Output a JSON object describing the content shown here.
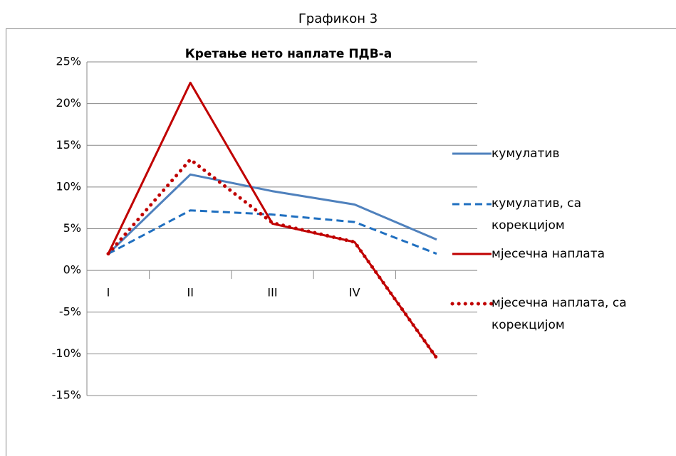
{
  "caption": "Графикон 3",
  "chart_data": {
    "type": "line",
    "title": "Кретање нето наплате ПДВ-а",
    "categories": [
      "I",
      "II",
      "III",
      "IV",
      null
    ],
    "series": [
      {
        "name": "кумулатив",
        "color": "#4f81bd",
        "style": "solid",
        "values": [
          2,
          11.5,
          9.5,
          7.9,
          3.7
        ]
      },
      {
        "name": "кумулатив, са корекцијом",
        "color": "#1f6fc0",
        "style": "dashed",
        "values": [
          2,
          7.2,
          6.7,
          5.8,
          2.0
        ]
      },
      {
        "name": "мјесечна наплата",
        "color": "#c00000",
        "style": "solid",
        "values": [
          2,
          22.5,
          5.6,
          3.4,
          -10.5
        ]
      },
      {
        "name": "мјесечна наплата, са корекцијом",
        "color": "#c00000",
        "style": "dotted",
        "values": [
          2,
          13.3,
          5.7,
          3.4,
          -10.5
        ]
      }
    ],
    "ylim": [
      -15,
      25
    ],
    "yticks": [
      {
        "value": -15,
        "label": "-15%"
      },
      {
        "value": -10,
        "label": "-10%"
      },
      {
        "value": -5,
        "label": "-5%"
      },
      {
        "value": 0,
        "label": "0%"
      },
      {
        "value": 5,
        "label": "5%"
      },
      {
        "value": 10,
        "label": "10%"
      },
      {
        "value": 15,
        "label": "15%"
      },
      {
        "value": 20,
        "label": "20%"
      },
      {
        "value": 25,
        "label": "25%"
      }
    ],
    "grid": true,
    "legend": "right"
  }
}
